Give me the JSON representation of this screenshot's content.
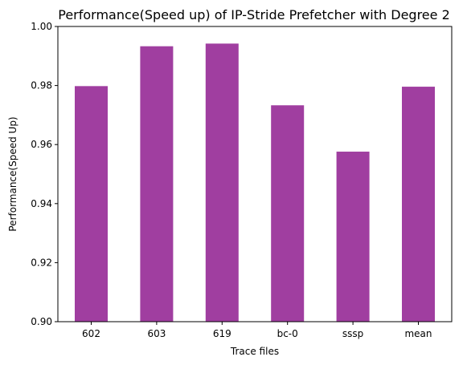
{
  "chart_data": {
    "type": "bar",
    "title": "Performance(Speed up) of IP-Stride Prefetcher with Degree 2",
    "xlabel": "Trace files",
    "ylabel": "Performance(Speed Up)",
    "categories": [
      "602",
      "603",
      "619",
      "bc-0",
      "sssp",
      "mean"
    ],
    "values": [
      0.9798,
      0.9933,
      0.9942,
      0.9733,
      0.9576,
      0.9796
    ],
    "ylim": [
      0.9,
      1.0
    ],
    "yticks": [
      "0.90",
      "0.92",
      "0.94",
      "0.96",
      "0.98",
      "1.00"
    ],
    "bar_color": "#a03ea0",
    "grid": false,
    "legend": false
  }
}
